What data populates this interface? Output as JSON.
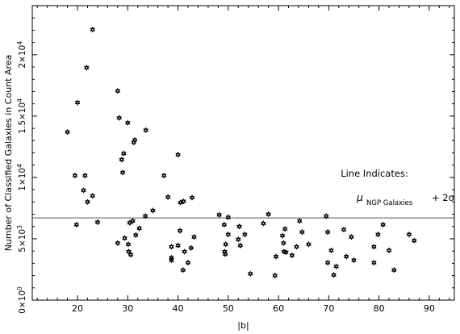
{
  "chart_data": {
    "type": "scatter",
    "title": "",
    "xlabel": "|b|",
    "ylabel": "Number of Classified Galaxies in Count Area",
    "xlim": [
      11,
      95
    ],
    "ylim": [
      0,
      24000
    ],
    "x_ticks": [
      20,
      30,
      40,
      50,
      60,
      70,
      80,
      90
    ],
    "x_tick_labels": [
      "20",
      "30",
      "40",
      "50",
      "60",
      "70",
      "80",
      "90"
    ],
    "y_ticks": [
      0,
      5000,
      10000,
      15000,
      20000
    ],
    "y_tick_labels": [
      {
        "mantissa": "0×10",
        "exp": "0"
      },
      {
        "mantissa": "5×10",
        "exp": "3"
      },
      {
        "mantissa": "1×10",
        "exp": "4"
      },
      {
        "mantissa": "1.5×10",
        "exp": "4"
      },
      {
        "mantissa": "2×10",
        "exp": "4"
      }
    ],
    "minor_x_step": 2,
    "minor_y_step": 1000,
    "grid": false,
    "marker": "six-point-star",
    "reference_line": {
      "y": 6700,
      "color": "#7a7a7a",
      "annotation": {
        "title": "Line Indicates:",
        "mu": "μ",
        "subscript": "NGP Galaxies",
        "rest": "+ 2σ"
      }
    },
    "series": [
      {
        "name": "",
        "points": [
          [
            18.0,
            13700
          ],
          [
            19.5,
            10150
          ],
          [
            19.8,
            6150
          ],
          [
            20.0,
            16100
          ],
          [
            21.2,
            8950
          ],
          [
            21.5,
            10150
          ],
          [
            21.8,
            18950
          ],
          [
            22.0,
            8000
          ],
          [
            23.0,
            22050
          ],
          [
            23.0,
            8500
          ],
          [
            24.0,
            6350
          ],
          [
            28.0,
            17050
          ],
          [
            28.0,
            4650
          ],
          [
            28.3,
            14850
          ],
          [
            28.8,
            11450
          ],
          [
            29.0,
            10400
          ],
          [
            29.2,
            11950
          ],
          [
            29.4,
            5050
          ],
          [
            30.0,
            14450
          ],
          [
            30.1,
            4550
          ],
          [
            30.2,
            3950
          ],
          [
            30.4,
            6300
          ],
          [
            30.6,
            3700
          ],
          [
            31.0,
            6450
          ],
          [
            31.2,
            12850
          ],
          [
            31.4,
            13050
          ],
          [
            31.6,
            5300
          ],
          [
            32.3,
            5850
          ],
          [
            33.5,
            6850
          ],
          [
            33.6,
            13850
          ],
          [
            35.0,
            7300
          ],
          [
            37.2,
            10150
          ],
          [
            38.0,
            8400
          ],
          [
            38.7,
            4350
          ],
          [
            38.7,
            3450
          ],
          [
            38.7,
            3250
          ],
          [
            40.0,
            11850
          ],
          [
            40.0,
            4450
          ],
          [
            40.4,
            5650
          ],
          [
            40.5,
            7950
          ],
          [
            41.0,
            2450
          ],
          [
            41.1,
            8050
          ],
          [
            41.3,
            3950
          ],
          [
            42.0,
            3050
          ],
          [
            42.6,
            4250
          ],
          [
            42.8,
            8350
          ],
          [
            43.2,
            5150
          ],
          [
            48.2,
            6950
          ],
          [
            49.2,
            6150
          ],
          [
            49.3,
            3950
          ],
          [
            49.4,
            3750
          ],
          [
            49.5,
            4550
          ],
          [
            50.0,
            6750
          ],
          [
            50.0,
            5350
          ],
          [
            52.0,
            4950
          ],
          [
            52.2,
            6000
          ],
          [
            52.4,
            4450
          ],
          [
            53.3,
            5350
          ],
          [
            54.4,
            2150
          ],
          [
            57.0,
            6250
          ],
          [
            58.0,
            7000
          ],
          [
            59.3,
            2000
          ],
          [
            59.5,
            3550
          ],
          [
            60.8,
            5250
          ],
          [
            61.0,
            4650
          ],
          [
            61.1,
            3950
          ],
          [
            61.3,
            5800
          ],
          [
            61.5,
            3900
          ],
          [
            62.7,
            3650
          ],
          [
            63.6,
            4350
          ],
          [
            64.2,
            6450
          ],
          [
            64.7,
            5550
          ],
          [
            66.0,
            4550
          ],
          [
            69.5,
            6850
          ],
          [
            69.8,
            5550
          ],
          [
            69.8,
            3050
          ],
          [
            70.5,
            4050
          ],
          [
            71.0,
            2050
          ],
          [
            71.5,
            2750
          ],
          [
            73.0,
            5750
          ],
          [
            73.5,
            3550
          ],
          [
            74.5,
            5150
          ],
          [
            75.0,
            3250
          ],
          [
            79.0,
            4350
          ],
          [
            79.0,
            3050
          ],
          [
            79.8,
            5350
          ],
          [
            80.8,
            6150
          ],
          [
            82.0,
            4050
          ],
          [
            83.0,
            2450
          ],
          [
            86.0,
            5350
          ],
          [
            87.0,
            4850
          ]
        ]
      }
    ]
  }
}
